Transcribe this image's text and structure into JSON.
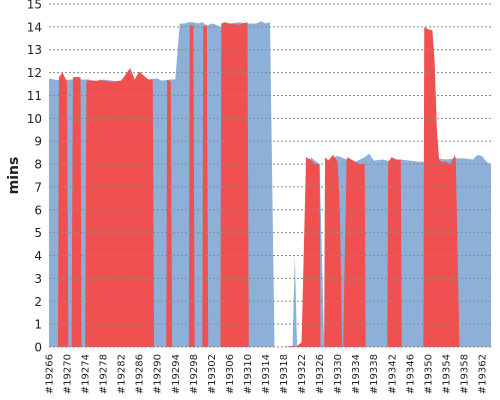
{
  "chart_data": {
    "type": "area",
    "ylabel": "mins",
    "ylim": [
      0,
      15
    ],
    "yticks": [
      "0",
      "1",
      "2",
      "3",
      "4",
      "5",
      "6",
      "7",
      "8",
      "9",
      "10",
      "11",
      "12",
      "13",
      "14",
      "15"
    ],
    "xlim": [
      19266,
      19364
    ],
    "xticks": [
      "#19266",
      "#19270",
      "#19274",
      "#19278",
      "#19282",
      "#19286",
      "#19290",
      "#19294",
      "#19298",
      "#19302",
      "#19306",
      "#19310",
      "#19314",
      "#19318",
      "#19322",
      "#19326",
      "#19330",
      "#19334",
      "#19338",
      "#19342",
      "#19346",
      "#19350",
      "#19354",
      "#19358",
      "#19362"
    ],
    "grid": true,
    "colors": {
      "blue": "#8cb0d8",
      "red": "#f05050",
      "grid": "#8a8a8a"
    },
    "series": [
      {
        "color": "blue",
        "x": [
          19266,
          19267,
          19269,
          19271,
          19273,
          19275,
          19277,
          19278,
          19280,
          19282,
          19284,
          19285,
          19286,
          19288,
          19290,
          19291,
          19293,
          19294,
          19295,
          19296,
          19297,
          19298,
          19299,
          19300,
          19301,
          19302,
          19303,
          19304,
          19305,
          19306,
          19308,
          19310,
          19312,
          19313,
          19314,
          19315,
          19316,
          19318,
          19320,
          19320.5,
          19321,
          19322,
          19324,
          19326,
          19327,
          19328,
          19330,
          19332,
          19334,
          19336,
          19337,
          19338,
          19340,
          19342,
          19344,
          19346,
          19348,
          19350,
          19352,
          19354,
          19356,
          19358,
          19360,
          19361,
          19362,
          19363,
          19364
        ],
        "y": [
          11.75,
          11.7,
          11.65,
          11.7,
          11.7,
          11.7,
          11.55,
          11.7,
          11.65,
          11.6,
          11.65,
          11.6,
          11.7,
          11.7,
          11.75,
          11.65,
          11.7,
          11.7,
          14.15,
          14.15,
          14.2,
          14.2,
          14.15,
          14.2,
          14.05,
          14.15,
          14.1,
          14.0,
          14.2,
          14.15,
          14.2,
          14.15,
          14.15,
          14.25,
          14.15,
          14.2,
          0.0,
          0.0,
          0.05,
          4.0,
          0.05,
          0.0,
          8.3,
          8.0,
          0.1,
          8.2,
          8.35,
          8.2,
          8.1,
          8.3,
          8.45,
          8.15,
          8.2,
          8.1,
          8.2,
          8.15,
          8.1,
          8.1,
          8.25,
          8.2,
          8.25,
          8.25,
          8.2,
          8.4,
          8.35,
          8.1,
          8.0
        ]
      },
      {
        "color": "red",
        "x": [
          19266,
          19268,
          19268.2,
          19269,
          19270,
          19270.3,
          19271,
          19271.3,
          19273,
          19273.2,
          19274,
          19274.3,
          19277,
          19277.3,
          19278,
          19280,
          19282,
          19284,
          19285,
          19286,
          19288,
          19289,
          19289.3,
          19292,
          19292.2,
          19293,
          19293.3,
          19297,
          19297.2,
          19298,
          19298.3,
          19300,
          19300.2,
          19301,
          19301.3,
          19304,
          19304.2,
          19305,
          19306,
          19308,
          19310,
          19310.3,
          19313,
          19316,
          19318,
          19320,
          19320.5,
          19321,
          19322,
          19323,
          19324,
          19325,
          19326,
          19326.2,
          19327,
          19327.2,
          19328,
          19328.5,
          19329,
          19330,
          19330.5,
          19331,
          19331.2,
          19332,
          19332.2,
          19333,
          19334,
          19335,
          19336,
          19336.2,
          19341,
          19341.2,
          19342,
          19343,
          19344,
          19344.2,
          19349,
          19349.2,
          19350,
          19351,
          19351.5,
          19352,
          19352.5,
          19353,
          19354,
          19355,
          19356,
          19356.2,
          19357,
          19358,
          19358.2,
          19364
        ],
        "y": [
          0,
          0,
          11.8,
          12.0,
          11.6,
          0,
          0,
          11.8,
          11.8,
          0,
          0,
          11.65,
          11.65,
          11.7,
          11.65,
          11.6,
          11.65,
          12.2,
          11.7,
          12.05,
          11.7,
          11.7,
          0,
          0,
          11.7,
          11.6,
          0,
          0,
          14.1,
          14.05,
          0,
          0,
          14.0,
          14.1,
          0,
          0,
          14.15,
          14.2,
          14.15,
          14.1,
          14.2,
          0,
          0,
          0,
          0,
          0.05,
          0,
          0.05,
          0.2,
          8.3,
          8.2,
          8.0,
          8.0,
          0,
          0,
          8.3,
          8.15,
          8.3,
          8.4,
          8.1,
          6.0,
          0,
          0,
          8.2,
          8.3,
          8.2,
          8.1,
          8.0,
          8.0,
          0,
          0,
          8.1,
          8.3,
          8.2,
          8.2,
          0,
          0,
          14.0,
          13.9,
          13.85,
          12.5,
          9.5,
          8.2,
          8.1,
          8.1,
          8.0,
          8.4,
          8.2,
          0,
          0,
          0,
          0
        ]
      }
    ]
  }
}
